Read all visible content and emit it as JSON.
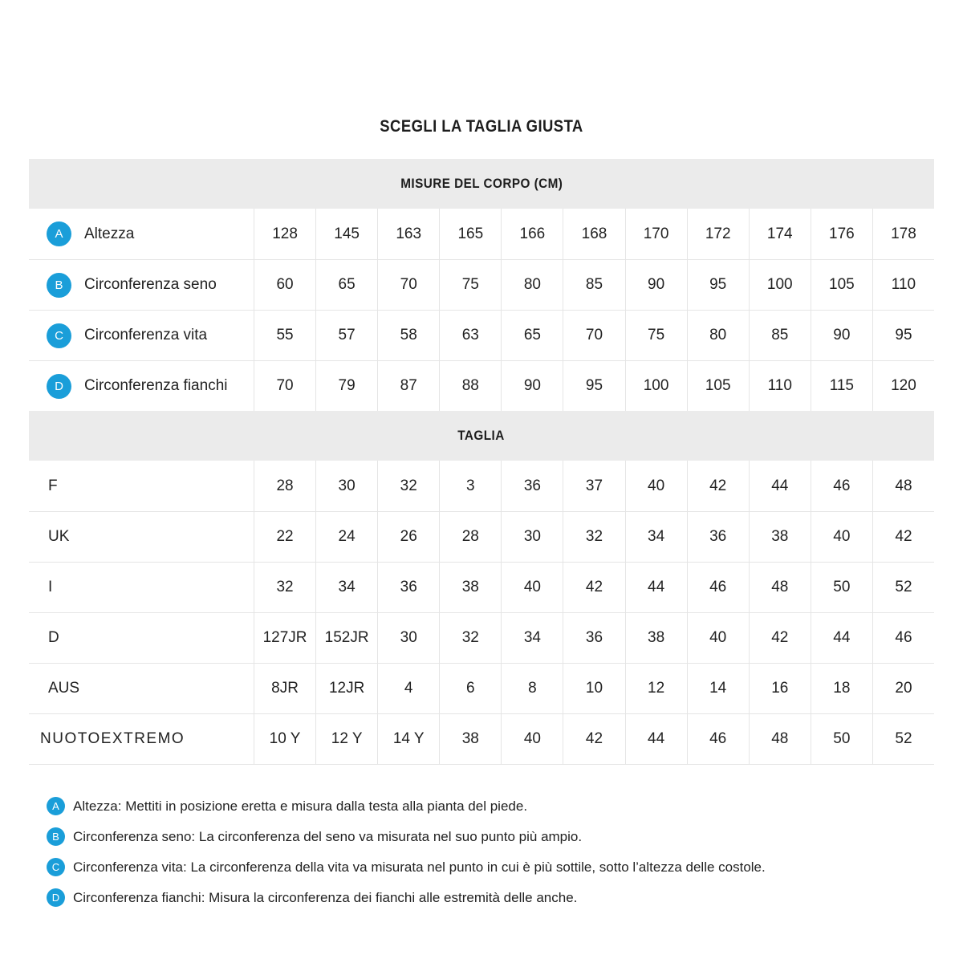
{
  "page": {
    "title": "SCEGLI LA TAGLIA GIUSTA"
  },
  "table": {
    "measure_header": "MISURE DEL CORPO (CM)",
    "size_header": "TAGLIA",
    "measure_rows": [
      {
        "badge": "A",
        "label": "Altezza",
        "values": [
          "128",
          "145",
          "163",
          "165",
          "166",
          "168",
          "170",
          "172",
          "174",
          "176",
          "178"
        ]
      },
      {
        "badge": "B",
        "label": "Circonferenza seno",
        "values": [
          "60",
          "65",
          "70",
          "75",
          "80",
          "85",
          "90",
          "95",
          "100",
          "105",
          "110"
        ]
      },
      {
        "badge": "C",
        "label": "Circonferenza vita",
        "values": [
          "55",
          "57",
          "58",
          "63",
          "65",
          "70",
          "75",
          "80",
          "85",
          "90",
          "95"
        ]
      },
      {
        "badge": "D",
        "label": "Circonferenza fianchi",
        "values": [
          "70",
          "79",
          "87",
          "88",
          "90",
          "95",
          "100",
          "105",
          "110",
          "115",
          "120"
        ]
      }
    ],
    "size_rows": [
      {
        "label": "F",
        "values": [
          "28",
          "30",
          "32",
          "3",
          "36",
          "37",
          "40",
          "42",
          "44",
          "46",
          "48"
        ]
      },
      {
        "label": "UK",
        "values": [
          "22",
          "24",
          "26",
          "28",
          "30",
          "32",
          "34",
          "36",
          "38",
          "40",
          "42"
        ]
      },
      {
        "label": "I",
        "values": [
          "32",
          "34",
          "36",
          "38",
          "40",
          "42",
          "44",
          "46",
          "48",
          "50",
          "52"
        ]
      },
      {
        "label": "D",
        "values": [
          "127JR",
          "152JR",
          "30",
          "32",
          "34",
          "36",
          "38",
          "40",
          "42",
          "44",
          "46"
        ]
      },
      {
        "label": "AUS",
        "values": [
          "8JR",
          "12JR",
          "4",
          "6",
          "8",
          "10",
          "12",
          "14",
          "16",
          "18",
          "20"
        ]
      },
      {
        "label": "NUOTOEXTREMO",
        "values": [
          "10 Y",
          "12 Y",
          "14 Y",
          "38",
          "40",
          "42",
          "44",
          "46",
          "48",
          "50",
          "52"
        ]
      }
    ]
  },
  "notes": [
    {
      "badge": "A",
      "text": "Altezza: Mettiti in posizione eretta e misura dalla testa alla pianta del piede."
    },
    {
      "badge": "B",
      "text": "Circonferenza seno: La circonferenza del seno va misurata nel suo punto più ampio."
    },
    {
      "badge": "C",
      "text": "Circonferenza vita: La circonferenza della vita va misurata nel punto in cui è più sottile, sotto l’altezza delle costole."
    },
    {
      "badge": "D",
      "text": "Circonferenza fianchi: Misura la circonferenza dei fianchi alle estremità delle anche."
    }
  ],
  "colors": {
    "badge_blue": "#1a9ed9",
    "band_gray": "#ebebeb",
    "border_gray": "#e5e5e5",
    "text": "#1d1d1d"
  }
}
